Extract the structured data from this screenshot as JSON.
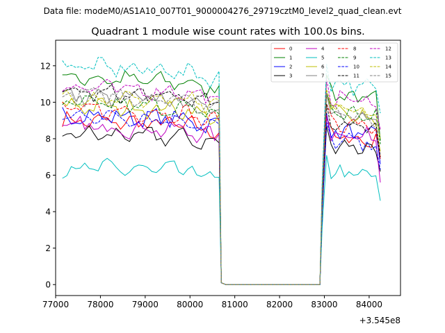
{
  "chart_data": {
    "type": "line",
    "suptitle": "Data file: modeM0/AS1A10_007T01_9000004276_29719cztM0_level2_quad_clean.evt",
    "title": "Quadrant 1 module wise count rates with 100.0s bins.",
    "xlabel": "",
    "ylabel": "",
    "x_offset_label": "+3.545e8",
    "xlim": [
      77000,
      84700
    ],
    "ylim": [
      -0.6,
      13.4
    ],
    "x_ticks": [
      77000,
      78000,
      79000,
      80000,
      81000,
      82000,
      83000,
      84000
    ],
    "x_tick_labels": [
      "77000",
      "78000",
      "79000",
      "80000",
      "81000",
      "82000",
      "83000",
      "84000"
    ],
    "y_ticks": [
      0,
      2,
      4,
      6,
      8,
      10,
      12
    ],
    "y_tick_labels": [
      "0",
      "2",
      "4",
      "6",
      "8",
      "10",
      "12"
    ],
    "legend_position": "upper right",
    "grid": false,
    "segment1": {
      "start": 77150,
      "step": 100,
      "count": 36
    },
    "gap": {
      "x": [
        80700,
        80800,
        82800,
        82900
      ],
      "y": [
        0.1,
        0.0,
        0.0,
        0.0
      ]
    },
    "segment2": {
      "start": 82950,
      "step": 100,
      "count": 14
    },
    "series": [
      {
        "name": "0",
        "color": "#ff0000",
        "style": "solid",
        "level1": 8.7,
        "level2": 8.2,
        "end2": 6.9
      },
      {
        "name": "1",
        "color": "#008000",
        "style": "solid",
        "level1": 11.0,
        "level2": 10.6,
        "end2": 7.9
      },
      {
        "name": "2",
        "color": "#0000ff",
        "style": "solid",
        "level1": 9.0,
        "level2": 8.5,
        "end2": 6.6
      },
      {
        "name": "3",
        "color": "#000000",
        "style": "solid",
        "level1": 8.0,
        "level2": 7.8,
        "end2": 6.2
      },
      {
        "name": "4",
        "color": "#bf00bf",
        "style": "solid",
        "level1": 8.4,
        "level2": 8.4,
        "end2": 5.6
      },
      {
        "name": "5",
        "color": "#00bfbf",
        "style": "solid",
        "level1": 6.2,
        "level2": 6.2,
        "end2": 4.6
      },
      {
        "name": "6",
        "color": "#bfbf00",
        "style": "solid",
        "level1": 9.5,
        "level2": 9.6,
        "end2": 7.3
      },
      {
        "name": "7",
        "color": "#808080",
        "style": "solid",
        "level1": 10.0,
        "level2": 9.5,
        "end2": 8.5
      },
      {
        "name": "8",
        "color": "#ff0000",
        "style": "dashed",
        "level1": 9.3,
        "level2": 9.0,
        "end2": 7.0
      },
      {
        "name": "9",
        "color": "#008000",
        "style": "dashed",
        "level1": 9.6,
        "level2": 9.6,
        "end2": 7.7
      },
      {
        "name": "10",
        "color": "#0000ff",
        "style": "dashed",
        "level1": 9.0,
        "level2": 8.0,
        "end2": 6.3
      },
      {
        "name": "11",
        "color": "#000000",
        "style": "dashed",
        "level1": 10.2,
        "level2": 9.0,
        "end2": 7.0
      },
      {
        "name": "12",
        "color": "#bf00bf",
        "style": "dashed",
        "level1": 10.5,
        "level2": 10.4,
        "end2": 8.5
      },
      {
        "name": "13",
        "color": "#00bfbf",
        "style": "dashed",
        "level1": 11.6,
        "level2": 11.2,
        "end2": 9.4
      },
      {
        "name": "14",
        "color": "#bfbf00",
        "style": "dashed",
        "level1": 10.0,
        "level2": 9.8,
        "end2": 8.0
      },
      {
        "name": "15",
        "color": "#808080",
        "style": "dashed",
        "level1": 10.1,
        "level2": 9.6,
        "end2": 8.3
      }
    ]
  }
}
